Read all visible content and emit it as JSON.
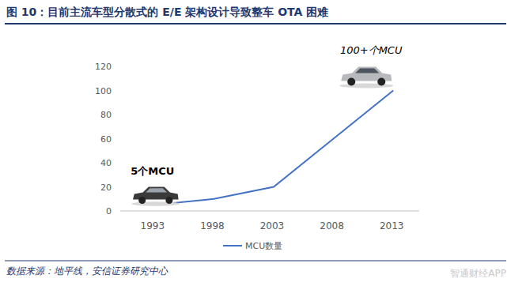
{
  "chart_data": {
    "type": "line",
    "title": "图 10：目前主流车型分散式的 E/E 架构设计导致整车 OTA 困难",
    "source": "数据来源：地平线，安信证券研究中心",
    "watermark": "智通财经APP",
    "annotations": [
      "5个MCU",
      "100+个MCU"
    ],
    "categories": [
      "1993",
      "1998",
      "2003",
      "2008",
      "2013"
    ],
    "series": [
      {
        "name": "MCU数量",
        "color": "#4472c4",
        "values": [
          5,
          10,
          20,
          60,
          100
        ]
      }
    ],
    "ylim": [
      0,
      120
    ],
    "yticks": [
      0,
      20,
      40,
      60,
      80,
      100,
      120
    ],
    "grid": false,
    "legend": "bottom"
  }
}
